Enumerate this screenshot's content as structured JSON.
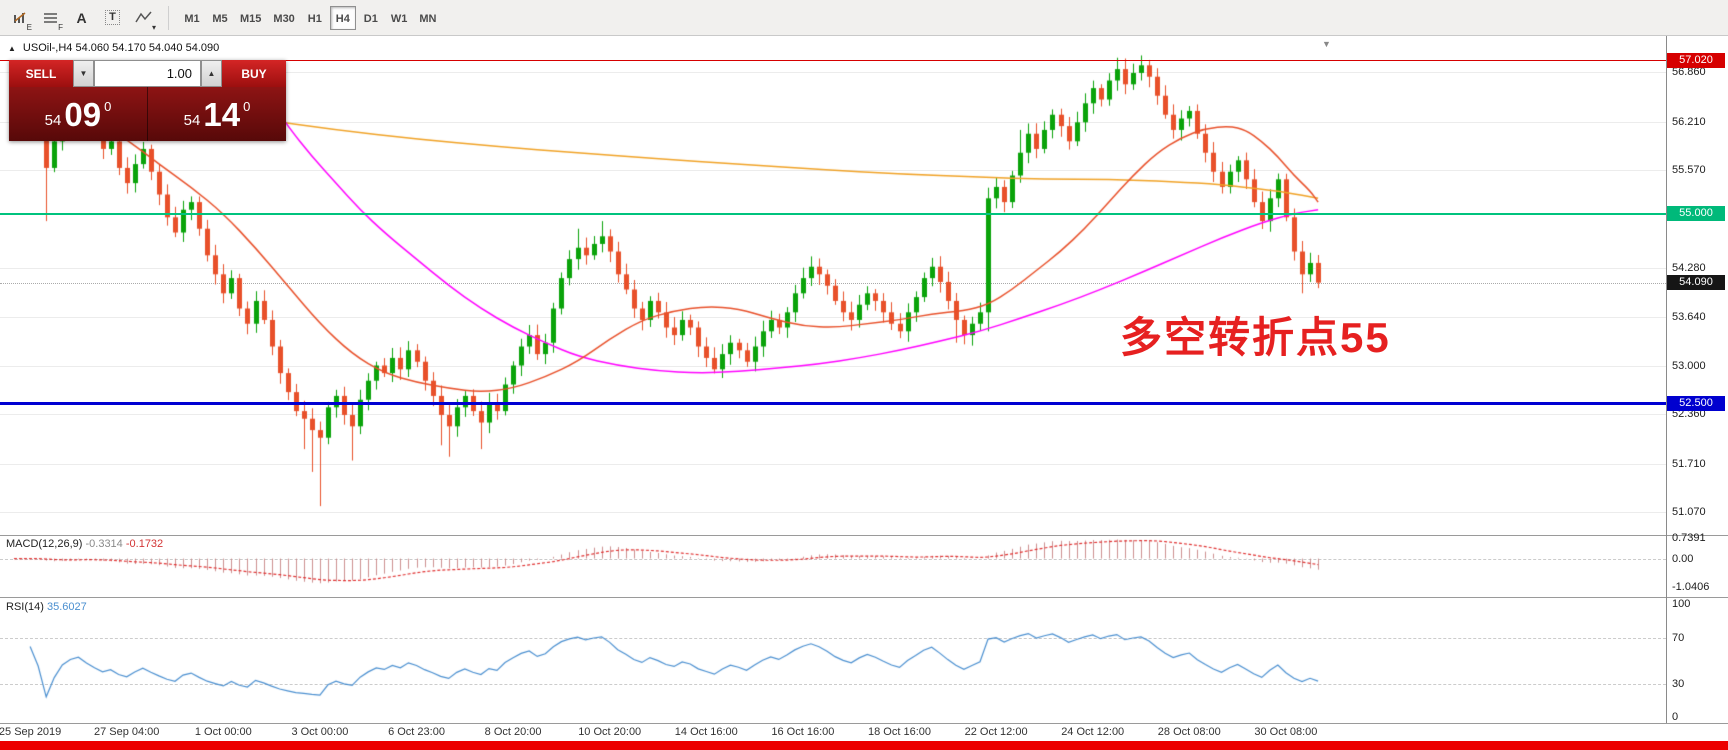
{
  "toolbar": {
    "icons": [
      {
        "name": "chart-edit-icon",
        "kind": "bars",
        "sub": "E"
      },
      {
        "name": "object-list-icon",
        "kind": "lines",
        "sub": "F"
      },
      {
        "name": "text-tool-icon",
        "kind": "glyph",
        "glyph": "A"
      },
      {
        "name": "text-cursor-tool-icon",
        "kind": "boxed",
        "glyph": "T"
      },
      {
        "name": "line-style-icon",
        "kind": "zigzag",
        "sub": "▾"
      }
    ],
    "timeframes": [
      "M1",
      "M5",
      "M15",
      "M30",
      "H1",
      "H4",
      "D1",
      "W1",
      "MN"
    ],
    "active_timeframe": "H4"
  },
  "chart": {
    "collapse_glyph": "▲",
    "title": "USOil-,H4  54.060 54.170 54.040 54.090",
    "shift_marker_glyph": "▼",
    "annotation": {
      "text": "多空转折点55",
      "color": "#e62020"
    },
    "axis_labels": [
      {
        "text": "56.860",
        "price": 56.86
      },
      {
        "text": "56.210",
        "price": 56.21
      },
      {
        "text": "55.570",
        "price": 55.57
      },
      {
        "text": "54.280",
        "price": 54.28
      },
      {
        "text": "53.640",
        "price": 53.64
      },
      {
        "text": "53.000",
        "price": 53.0
      },
      {
        "text": "52.360",
        "price": 52.36
      },
      {
        "text": "51.710",
        "price": 51.71
      },
      {
        "text": "51.070",
        "price": 51.07
      }
    ],
    "badges": [
      {
        "text": "57.020",
        "price": 57.02,
        "color": "#d60000"
      },
      {
        "text": "55.000",
        "price": 55.0,
        "color": "#00b97a"
      },
      {
        "text": "54.090",
        "price": 54.09,
        "color": "#161616"
      },
      {
        "text": "52.500",
        "price": 52.5,
        "color": "#0000cf"
      }
    ],
    "hlines": [
      {
        "price": 57.02,
        "color": "#d60000",
        "thickness": 1
      },
      {
        "price": 55.0,
        "color": "#00c37e",
        "thickness": 2
      },
      {
        "price": 52.5,
        "color": "#0000d2",
        "thickness": 3
      }
    ],
    "current_price": 54.09,
    "time_ticks": [
      {
        "label": "25 Sep 2019",
        "index": 2
      },
      {
        "label": "27 Sep 04:00",
        "index": 14
      },
      {
        "label": "1 Oct 00:00",
        "index": 26
      },
      {
        "label": "3 Oct 00:00",
        "index": 38
      },
      {
        "label": "6 Oct 23:00",
        "index": 50
      },
      {
        "label": "8 Oct 20:00",
        "index": 62
      },
      {
        "label": "10 Oct 20:00",
        "index": 74
      },
      {
        "label": "14 Oct 16:00",
        "index": 86
      },
      {
        "label": "16 Oct 16:00",
        "index": 98
      },
      {
        "label": "18 Oct 16:00",
        "index": 110
      },
      {
        "label": "22 Oct 12:00",
        "index": 122
      },
      {
        "label": "24 Oct 12:00",
        "index": 134
      },
      {
        "label": "28 Oct 08:00",
        "index": 146
      },
      {
        "label": "30 Oct 08:00",
        "index": 158
      }
    ]
  },
  "trade_panel": {
    "sell_label": "SELL",
    "buy_label": "BUY",
    "volume": "1.00",
    "vol_down_glyph": "▼",
    "vol_up_glyph": "▲",
    "sell_price": {
      "small": "54",
      "big": "09",
      "sup": "0"
    },
    "buy_price": {
      "small": "54",
      "big": "14",
      "sup": "0"
    }
  },
  "indicators": {
    "macd": {
      "name": "MACD(12,26,9)",
      "value_main": "-0.3314",
      "value_signal": "-0.1732",
      "axis": [
        {
          "text": "0.7391",
          "value": 0.7391
        },
        {
          "text": "0.00",
          "value": 0
        },
        {
          "text": "-1.0406",
          "value": -1.0406
        }
      ]
    },
    "rsi": {
      "name": "RSI(14)",
      "value": "35.6027",
      "axis": [
        {
          "text": "100",
          "value": 100
        },
        {
          "text": "70",
          "value": 70
        },
        {
          "text": "30",
          "value": 30
        },
        {
          "text": "0",
          "value": 0
        }
      ],
      "levels": [
        70,
        30
      ]
    }
  },
  "chart_data": {
    "type": "candlestick",
    "symbol": "USOil-",
    "timeframe": "H4",
    "title_ohlc": {
      "open": 54.06,
      "high": 54.17,
      "low": 54.04,
      "close": 54.09
    },
    "first_open": 56.55,
    "closes": [
      56.45,
      56.3,
      56.55,
      56.4,
      55.6,
      55.95,
      56.3,
      56.5,
      56.6,
      56.35,
      56.1,
      55.85,
      55.95,
      55.6,
      55.4,
      55.65,
      55.85,
      55.55,
      55.25,
      54.95,
      54.75,
      55.05,
      55.15,
      54.8,
      54.45,
      54.2,
      53.95,
      54.15,
      53.75,
      53.55,
      53.85,
      53.6,
      53.25,
      52.9,
      52.65,
      52.4,
      52.3,
      52.15,
      52.05,
      52.45,
      52.6,
      52.35,
      52.2,
      52.55,
      52.8,
      53.0,
      52.9,
      53.1,
      52.95,
      53.2,
      53.05,
      52.8,
      52.6,
      52.35,
      52.2,
      52.45,
      52.6,
      52.4,
      52.25,
      52.5,
      52.4,
      52.75,
      53.0,
      53.25,
      53.4,
      53.15,
      53.3,
      53.75,
      54.15,
      54.4,
      54.55,
      54.45,
      54.6,
      54.7,
      54.5,
      54.2,
      54.0,
      53.75,
      53.6,
      53.85,
      53.7,
      53.5,
      53.4,
      53.6,
      53.5,
      53.25,
      53.1,
      52.95,
      53.15,
      53.3,
      53.2,
      53.05,
      53.25,
      53.45,
      53.6,
      53.5,
      53.7,
      53.95,
      54.15,
      54.3,
      54.2,
      54.05,
      53.85,
      53.7,
      53.6,
      53.8,
      53.95,
      53.85,
      53.7,
      53.55,
      53.45,
      53.7,
      53.9,
      54.15,
      54.3,
      54.1,
      53.85,
      53.6,
      53.4,
      53.55,
      53.7,
      55.2,
      55.35,
      55.15,
      55.5,
      55.8,
      56.05,
      55.85,
      56.1,
      56.3,
      56.15,
      55.95,
      56.2,
      56.45,
      56.65,
      56.5,
      56.75,
      56.9,
      56.7,
      56.85,
      56.95,
      56.8,
      56.55,
      56.3,
      56.1,
      56.25,
      56.35,
      56.05,
      55.8,
      55.55,
      55.35,
      55.55,
      55.7,
      55.45,
      55.15,
      54.9,
      55.2,
      55.45,
      54.95,
      54.5,
      54.2,
      54.35,
      54.09
    ],
    "wick_overrides": {
      "4": {
        "l": 54.9
      },
      "8": {
        "h": 56.9
      },
      "36": {
        "l": 51.9
      },
      "37": {
        "l": 51.6
      },
      "38": {
        "l": 51.15
      },
      "42": {
        "l": 51.75
      },
      "53": {
        "l": 51.95
      },
      "54": {
        "l": 51.8
      },
      "58": {
        "l": 51.9
      },
      "70": {
        "h": 54.8
      },
      "73": {
        "h": 54.9
      },
      "117": {
        "l": 53.3
      },
      "121": {
        "l": 53.45
      },
      "125": {
        "h": 56.1
      },
      "137": {
        "h": 57.05
      },
      "140": {
        "h": 57.08
      },
      "160": {
        "l": 53.95
      }
    },
    "up_color": "#0aa30a",
    "down_color": "#e8502a",
    "ma_lines": [
      {
        "name": "ma-slow",
        "color": "#f0a226",
        "points": [
          [
            10,
            56.5
          ],
          [
            20,
            56.4
          ],
          [
            30,
            56.25
          ],
          [
            40,
            56.1
          ],
          [
            50,
            55.98
          ],
          [
            60,
            55.88
          ],
          [
            70,
            55.8
          ],
          [
            80,
            55.72
          ],
          [
            90,
            55.65
          ],
          [
            100,
            55.58
          ],
          [
            110,
            55.52
          ],
          [
            120,
            55.48
          ],
          [
            128,
            55.45
          ],
          [
            136,
            55.45
          ],
          [
            144,
            55.42
          ],
          [
            150,
            55.38
          ],
          [
            155,
            55.32
          ],
          [
            158,
            55.28
          ],
          [
            162,
            55.2
          ]
        ]
      },
      {
        "name": "ma-medium",
        "color": "#ff00ff",
        "points": [
          [
            31,
            56.6
          ],
          [
            34,
            56.15
          ],
          [
            37,
            55.75
          ],
          [
            40,
            55.4
          ],
          [
            43,
            55.05
          ],
          [
            46,
            54.75
          ],
          [
            50,
            54.4
          ],
          [
            54,
            54.05
          ],
          [
            58,
            53.75
          ],
          [
            62,
            53.5
          ],
          [
            66,
            53.3
          ],
          [
            70,
            53.12
          ],
          [
            75,
            53.0
          ],
          [
            80,
            52.93
          ],
          [
            85,
            52.9
          ],
          [
            90,
            52.92
          ],
          [
            95,
            52.97
          ],
          [
            100,
            53.02
          ],
          [
            105,
            53.1
          ],
          [
            110,
            53.2
          ],
          [
            115,
            53.32
          ],
          [
            120,
            53.45
          ],
          [
            125,
            53.62
          ],
          [
            130,
            53.8
          ],
          [
            135,
            54.0
          ],
          [
            140,
            54.22
          ],
          [
            145,
            54.45
          ],
          [
            150,
            54.68
          ],
          [
            155,
            54.88
          ],
          [
            159,
            55.0
          ],
          [
            162,
            55.05
          ]
        ]
      },
      {
        "name": "ma-fast",
        "color": "#e8502a",
        "points": [
          [
            0,
            56.5
          ],
          [
            5,
            56.38
          ],
          [
            10,
            56.22
          ],
          [
            14,
            55.98
          ],
          [
            18,
            55.65
          ],
          [
            22,
            55.35
          ],
          [
            26,
            55.0
          ],
          [
            30,
            54.55
          ],
          [
            34,
            54.05
          ],
          [
            38,
            53.55
          ],
          [
            42,
            53.15
          ],
          [
            46,
            52.9
          ],
          [
            50,
            52.78
          ],
          [
            54,
            52.7
          ],
          [
            58,
            52.65
          ],
          [
            62,
            52.7
          ],
          [
            66,
            52.85
          ],
          [
            70,
            53.05
          ],
          [
            74,
            53.35
          ],
          [
            78,
            53.6
          ],
          [
            82,
            53.72
          ],
          [
            86,
            53.78
          ],
          [
            90,
            53.75
          ],
          [
            94,
            53.62
          ],
          [
            98,
            53.52
          ],
          [
            102,
            53.5
          ],
          [
            106,
            53.55
          ],
          [
            110,
            53.6
          ],
          [
            114,
            53.68
          ],
          [
            118,
            53.72
          ],
          [
            121,
            53.8
          ],
          [
            124,
            54.0
          ],
          [
            127,
            54.25
          ],
          [
            130,
            54.5
          ],
          [
            133,
            54.8
          ],
          [
            136,
            55.15
          ],
          [
            139,
            55.5
          ],
          [
            142,
            55.8
          ],
          [
            145,
            56.0
          ],
          [
            148,
            56.12
          ],
          [
            151,
            56.15
          ],
          [
            153,
            56.1
          ],
          [
            155,
            55.95
          ],
          [
            157,
            55.75
          ],
          [
            159,
            55.5
          ],
          [
            161,
            55.3
          ],
          [
            162,
            55.15
          ]
        ]
      }
    ],
    "macd_colors": {
      "histogram": "#cc8f8f",
      "signal": "#e03030"
    },
    "rsi_color": "#4a8fd0"
  }
}
